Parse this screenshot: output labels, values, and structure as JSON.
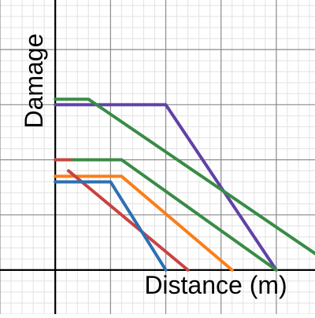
{
  "chart_data": {
    "type": "line",
    "xlabel": "Distance (m)",
    "ylabel": "Damage",
    "xlim": [
      -5,
      23.5
    ],
    "ylim": [
      -4,
      24.5
    ],
    "grid": true,
    "axis_colors": {
      "major": "#8a8a8a",
      "minor": "#e2e2e2",
      "axis": "#000000"
    },
    "series": [
      {
        "color": "#6042a6",
        "points": [
          [
            0,
            15
          ],
          [
            10,
            15
          ],
          [
            20,
            0
          ]
        ]
      },
      {
        "color": "#388c46",
        "points": [
          [
            0,
            15.5
          ],
          [
            3,
            15.5
          ],
          [
            23.5,
            1.5
          ]
        ]
      },
      {
        "color": "#388c46",
        "points": [
          [
            0,
            10
          ],
          [
            6,
            10
          ],
          [
            20,
            0
          ]
        ]
      },
      {
        "color": "#fa7e19",
        "points": [
          [
            0,
            8.5
          ],
          [
            6,
            8.5
          ],
          [
            16,
            0
          ]
        ]
      },
      {
        "color": "#c74440",
        "points": [
          [
            0,
            10
          ],
          [
            1.4,
            10
          ]
        ]
      },
      {
        "color": "#c74440",
        "points": [
          [
            1.2,
            9
          ],
          [
            12,
            0
          ]
        ]
      },
      {
        "color": "#2d70b3",
        "points": [
          [
            0,
            8
          ],
          [
            5,
            8
          ],
          [
            10,
            0
          ]
        ]
      }
    ]
  }
}
